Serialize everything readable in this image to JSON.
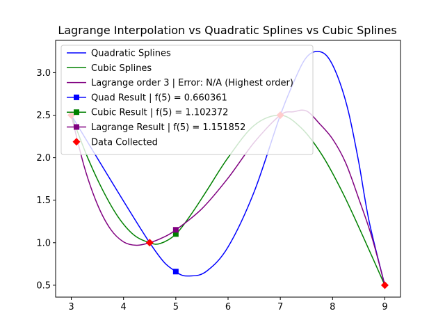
{
  "chart_data": {
    "type": "line",
    "title": "Lagrange Interpolation vs Quadratic Splines vs Cubic Splines",
    "xlabel": "",
    "ylabel": "",
    "xlim": [
      2.7,
      9.3
    ],
    "ylim": [
      0.36,
      3.38
    ],
    "xticks": [
      3,
      4,
      5,
      6,
      7,
      8,
      9
    ],
    "yticks": [
      0.5,
      1.0,
      1.5,
      2.0,
      2.5,
      3.0
    ],
    "ytick_labels": [
      "0.5",
      "1.0",
      "1.5",
      "2.0",
      "2.5",
      "3.0"
    ],
    "grid": false,
    "legend_position": "upper-left",
    "data_collected": {
      "name": "Data Collected",
      "color": "#ff0000",
      "x": [
        3,
        4.5,
        7,
        9
      ],
      "y": [
        2.5,
        1.0,
        2.5,
        0.5
      ]
    },
    "series": [
      {
        "name": "Quadratic Splines",
        "color": "#0000ff",
        "x": [
          3,
          4.5,
          5.0,
          5.3,
          5.6,
          6.0,
          6.5,
          7.0,
          7.3,
          7.5,
          7.7,
          7.9,
          8.1,
          8.3,
          8.5,
          8.7,
          9.0
        ],
        "y": [
          2.5,
          1.0,
          0.66,
          0.61,
          0.67,
          0.95,
          1.6,
          2.5,
          2.95,
          3.18,
          3.25,
          3.19,
          2.95,
          2.55,
          1.95,
          1.25,
          0.5
        ]
      },
      {
        "name": "Cubic Splines",
        "color": "#008000",
        "x": [
          3,
          3.3,
          3.6,
          3.9,
          4.2,
          4.5,
          4.7,
          5.0,
          5.3,
          5.6,
          6.0,
          6.5,
          7.0,
          7.4,
          7.8,
          8.2,
          8.6,
          9.0
        ],
        "y": [
          2.5,
          2.02,
          1.62,
          1.3,
          1.09,
          1.0,
          0.99,
          1.1,
          1.34,
          1.62,
          2.0,
          2.38,
          2.5,
          2.35,
          2.03,
          1.58,
          1.05,
          0.5
        ]
      },
      {
        "name": "Lagrange order 3 | Error: N/A (Highest order)",
        "color": "#800080",
        "x": [
          3,
          3.25,
          3.5,
          3.75,
          4.0,
          4.25,
          4.5,
          4.75,
          5.0,
          5.5,
          6.0,
          6.5,
          7.0,
          7.25,
          7.5,
          7.75,
          8.0,
          8.25,
          8.5,
          8.75,
          9.0
        ],
        "y": [
          2.5,
          1.89,
          1.45,
          1.16,
          1.01,
          0.97,
          1.0,
          1.06,
          1.15,
          1.4,
          1.76,
          2.18,
          2.5,
          2.54,
          2.55,
          2.4,
          2.22,
          1.94,
          1.52,
          1.07,
          0.5
        ]
      }
    ],
    "results": [
      {
        "name": "Quad Result | f(5) = 0.660361",
        "color": "#0000ff",
        "x": 5,
        "y": 0.660361
      },
      {
        "name": "Cubic Result | f(5) = 1.102372",
        "color": "#008000",
        "x": 5,
        "y": 1.102372
      },
      {
        "name": "Lagrange Result | f(5) = 1.151852",
        "color": "#800080",
        "x": 5,
        "y": 1.151852
      }
    ]
  }
}
